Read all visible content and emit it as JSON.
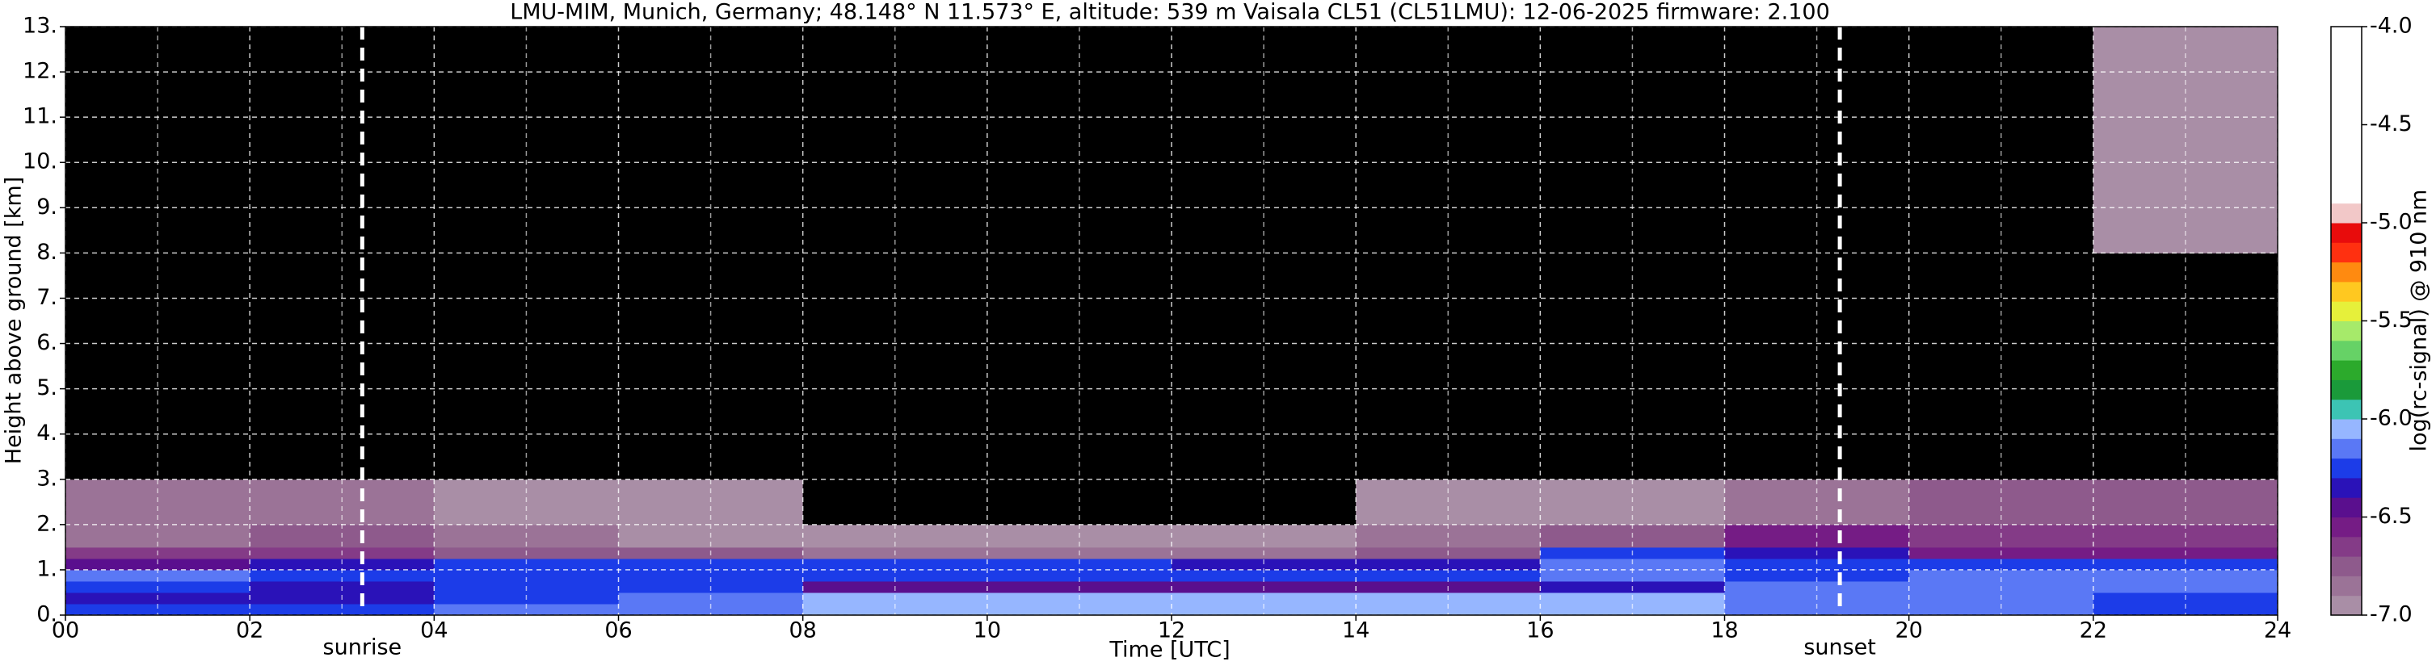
{
  "chart_data": {
    "type": "heatmap",
    "title": "LMU-MIM, Munich, Germany; 48.148° N 11.573° E, altitude: 539 m    Vaisala CL51 (CL51LMU): 12-06-2025    firmware: 2.100",
    "x_label": "Time [UTC]",
    "y_label": "Height above ground [km]",
    "x_edges": [
      0,
      2,
      4,
      6,
      8,
      10,
      12,
      14,
      16,
      18,
      20,
      22,
      24
    ],
    "y_edges": [
      0,
      0.25,
      0.5,
      0.75,
      1.0,
      1.25,
      1.5,
      2.0,
      3.0,
      5.0,
      8.0,
      13.0
    ],
    "values": [
      [
        -6.3,
        -6.3,
        -6.2,
        -6.15,
        -6.1,
        -6.05,
        -6.05,
        -6.05,
        -6.1,
        -6.15,
        -6.2,
        -6.3
      ],
      [
        -6.35,
        -6.35,
        -6.3,
        -6.2,
        -6.1,
        -6.1,
        -6.1,
        -6.1,
        -6.1,
        -6.15,
        -6.2,
        -6.25
      ],
      [
        -6.3,
        -6.35,
        -6.3,
        -6.3,
        -6.45,
        -6.45,
        -6.45,
        -6.45,
        -6.4,
        -6.2,
        -6.2,
        -6.2
      ],
      [
        -6.2,
        -6.25,
        -6.3,
        -6.3,
        -6.25,
        -6.25,
        -6.25,
        -6.25,
        -6.2,
        -6.25,
        -6.15,
        -6.15
      ],
      [
        -6.5,
        -6.4,
        -6.3,
        -6.25,
        -6.3,
        -6.3,
        -6.35,
        -6.35,
        -6.2,
        -6.25,
        -6.3,
        -6.3
      ],
      [
        -6.7,
        -6.65,
        -6.75,
        -6.8,
        -6.85,
        -6.85,
        -6.85,
        -6.8,
        -6.3,
        -6.35,
        -6.55,
        -6.55
      ],
      [
        -6.85,
        -6.8,
        -6.9,
        -6.95,
        -6.95,
        -6.95,
        -6.95,
        -6.9,
        -6.75,
        -6.6,
        -6.7,
        -6.7
      ],
      [
        -6.9,
        -6.9,
        -6.95,
        -6.95,
        -7.05,
        -7.05,
        -7.05,
        -7.0,
        -6.95,
        -6.85,
        -6.8,
        -6.8
      ],
      [
        -7.05,
        -7.05,
        -7.05,
        -7.05,
        -7.1,
        -7.1,
        -7.1,
        -7.1,
        -7.05,
        -7.05,
        -7.05,
        -7.05
      ],
      [
        -7.1,
        -7.1,
        -7.1,
        -7.05,
        -7.1,
        -7.1,
        -7.1,
        -7.1,
        -7.1,
        -7.1,
        -7.1,
        -7.1
      ],
      [
        -7.1,
        -7.1,
        -7.1,
        -7.1,
        -7.1,
        -7.1,
        -7.1,
        -7.1,
        -7.1,
        -7.1,
        -7.1,
        -6.95
      ]
    ],
    "under_color": "#000000",
    "xlim": [
      0,
      24
    ],
    "ylim": [
      0,
      13
    ],
    "xticks": [
      {
        "value": 0,
        "label": "00"
      },
      {
        "value": 2,
        "label": "02"
      },
      {
        "value": 4,
        "label": "04"
      },
      {
        "value": 6,
        "label": "06"
      },
      {
        "value": 8,
        "label": "08"
      },
      10,
      12,
      14,
      16,
      18,
      20,
      22,
      24
    ],
    "xminorticks": [
      1,
      3,
      5,
      7,
      9,
      11,
      13,
      15,
      17,
      19,
      21,
      23
    ],
    "yticks": [
      {
        "value": 0,
        "label": "0."
      },
      {
        "value": 1,
        "label": "1."
      },
      {
        "value": 2,
        "label": "2."
      },
      {
        "value": 3,
        "label": "3."
      },
      {
        "value": 4,
        "label": "4."
      },
      {
        "value": 5,
        "label": "5."
      },
      {
        "value": 6,
        "label": "6."
      },
      {
        "value": 7,
        "label": "7."
      },
      {
        "value": 8,
        "label": "8."
      },
      {
        "value": 9,
        "label": "9."
      },
      {
        "value": 10,
        "label": "10."
      },
      {
        "value": 11,
        "label": "11."
      },
      {
        "value": 12,
        "label": "12."
      },
      {
        "value": 13,
        "label": "13."
      }
    ],
    "grid": true,
    "annotations": [
      {
        "text": "sunrise",
        "x": 3.22
      },
      {
        "text": "sunset",
        "x": 19.25
      }
    ],
    "colorbar": {
      "label": "log(rc-signal) @ 910 nm",
      "lim": [
        -7.0,
        -4.0
      ],
      "bounds": [
        -7.0,
        -6.9,
        -6.8,
        -6.7,
        -6.6,
        -6.5,
        -6.4,
        -6.3,
        -6.2,
        -6.1,
        -6.0,
        -5.9,
        -5.8,
        -5.7,
        -5.6,
        -5.5,
        -5.4,
        -5.3,
        -5.2,
        -5.1,
        -5.0,
        -4.9,
        -4.0
      ],
      "colors": [
        "#a98ea6",
        "#9b7397",
        "#8e5a8c",
        "#843b87",
        "#751c85",
        "#5a0f8e",
        "#2a12b8",
        "#1c3ce8",
        "#5a78f5",
        "#96b6ff",
        "#3cc4b4",
        "#1a9a3a",
        "#2caa2c",
        "#66d266",
        "#a6ea6a",
        "#e6f03a",
        "#ffc820",
        "#ff8a10",
        "#ff3010",
        "#e80c0c",
        "#f2c8c8",
        "#ffffff"
      ],
      "ticks": [
        {
          "value": -4.0,
          "label": "-4.0"
        },
        -4.5,
        {
          "value": -5.0,
          "label": "-5.0"
        },
        -5.5,
        {
          "value": -6.0,
          "label": "-6.0"
        },
        -6.5,
        {
          "value": -7.0,
          "label": "-7.0"
        }
      ]
    }
  }
}
